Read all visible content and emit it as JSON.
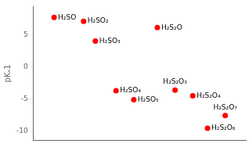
{
  "chart_data": {
    "type": "scatter",
    "ylabel": "pKₐ1",
    "x": [
      1.0,
      2.0,
      2.4,
      3.1,
      3.7,
      4.5,
      5.1,
      5.7,
      6.2,
      6.8
    ],
    "values": [
      7.8,
      7.2,
      4.1,
      -3.7,
      -5.1,
      6.2,
      -3.6,
      -4.5,
      -9.6,
      -7.6
    ],
    "annotations": [
      "H₂SO",
      "H₂SO₂",
      "H₂SO₃",
      "H₂SO₄",
      "H₂SO₅",
      "H₂S₂O",
      "H₂S₂O₃",
      "H₂S₂O₄",
      "H₂S₂O₆",
      "H₂S₂O₇"
    ],
    "color": "#ff0000",
    "xlim": [
      0.3,
      7.5
    ],
    "ylim": [
      -11.5,
      9.5
    ],
    "yticks": [
      -10,
      -5,
      0,
      5
    ],
    "tick_labels": "y",
    "grid": false
  }
}
